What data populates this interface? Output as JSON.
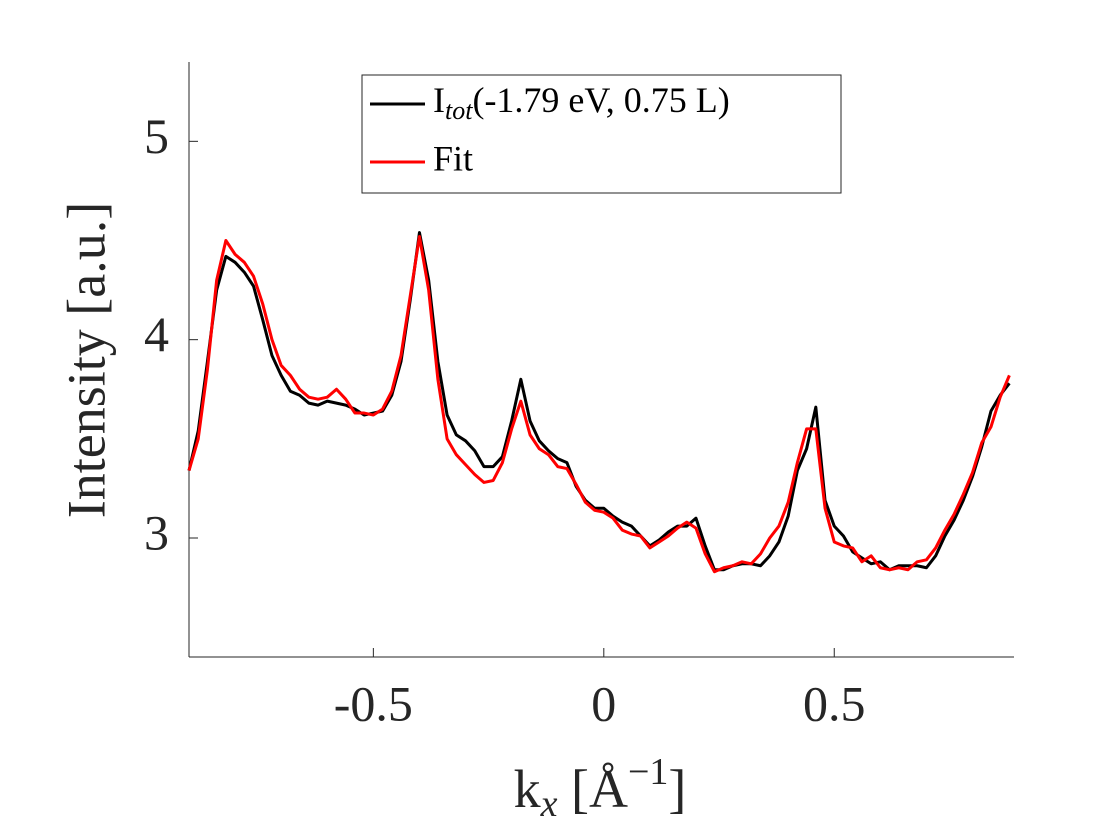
{
  "chart_data": {
    "type": "line",
    "xlabel": [
      "k",
      "x",
      " [Å",
      "−1",
      "]"
    ],
    "ylabel": "Intensity [a.u.]",
    "x": [
      -0.9,
      -0.88,
      -0.86,
      -0.84,
      -0.82,
      -0.8,
      -0.78,
      -0.76,
      -0.74,
      -0.72,
      -0.7,
      -0.68,
      -0.66,
      -0.64,
      -0.62,
      -0.6,
      -0.58,
      -0.56,
      -0.54,
      -0.52,
      -0.5,
      -0.48,
      -0.46,
      -0.44,
      -0.42,
      -0.4,
      -0.38,
      -0.36,
      -0.34,
      -0.32,
      -0.3,
      -0.28,
      -0.26,
      -0.24,
      -0.22,
      -0.2,
      -0.18,
      -0.16,
      -0.14,
      -0.12,
      -0.1,
      -0.08,
      -0.06,
      -0.04,
      -0.02,
      0,
      0.02,
      0.04,
      0.06,
      0.08,
      0.1,
      0.12,
      0.14,
      0.16,
      0.18,
      0.2,
      0.22,
      0.24,
      0.26,
      0.28,
      0.3,
      0.32,
      0.34,
      0.36,
      0.38,
      0.4,
      0.42,
      0.44,
      0.46,
      0.48,
      0.5,
      0.52,
      0.54,
      0.56,
      0.58,
      0.6,
      0.62,
      0.64,
      0.66,
      0.68,
      0.7,
      0.72,
      0.74,
      0.76,
      0.78,
      0.8,
      0.82,
      0.84,
      0.86,
      0.88
    ],
    "series": [
      {
        "name": [
          "I",
          "tot",
          "(-1.79 eV, 0.75 L)"
        ],
        "color": "#000000",
        "values": [
          3.34,
          3.54,
          3.89,
          4.25,
          4.42,
          4.39,
          4.34,
          4.27,
          4.1,
          3.92,
          3.82,
          3.74,
          3.72,
          3.68,
          3.67,
          3.69,
          3.68,
          3.67,
          3.65,
          3.62,
          3.63,
          3.64,
          3.72,
          3.89,
          4.2,
          4.54,
          4.3,
          3.89,
          3.62,
          3.52,
          3.49,
          3.44,
          3.36,
          3.36,
          3.41,
          3.59,
          3.8,
          3.59,
          3.49,
          3.44,
          3.4,
          3.38,
          3.26,
          3.19,
          3.15,
          3.15,
          3.11,
          3.08,
          3.06,
          3.01,
          2.96,
          2.99,
          3.03,
          3.06,
          3.06,
          3.1,
          2.96,
          2.84,
          2.84,
          2.86,
          2.87,
          2.87,
          2.86,
          2.91,
          2.98,
          3.11,
          3.34,
          3.45,
          3.66,
          3.19,
          3.06,
          3.01,
          2.93,
          2.9,
          2.87,
          2.88,
          2.84,
          2.86,
          2.86,
          2.86,
          2.85,
          2.91,
          3.01,
          3.09,
          3.19,
          3.31,
          3.46,
          3.64,
          3.72,
          3.78
        ]
      },
      {
        "name": "Fit",
        "color": "#ff0000",
        "values": [
          3.34,
          3.5,
          3.85,
          4.3,
          4.5,
          4.43,
          4.39,
          4.32,
          4.18,
          4.0,
          3.87,
          3.82,
          3.75,
          3.71,
          3.7,
          3.71,
          3.75,
          3.7,
          3.63,
          3.63,
          3.62,
          3.65,
          3.74,
          3.92,
          4.22,
          4.52,
          4.25,
          3.8,
          3.5,
          3.42,
          3.37,
          3.32,
          3.28,
          3.29,
          3.38,
          3.55,
          3.69,
          3.52,
          3.45,
          3.42,
          3.36,
          3.35,
          3.27,
          3.18,
          3.14,
          3.13,
          3.1,
          3.04,
          3.02,
          3.01,
          2.95,
          2.98,
          3.01,
          3.05,
          3.08,
          3.05,
          2.92,
          2.83,
          2.85,
          2.86,
          2.88,
          2.87,
          2.92,
          3.0,
          3.06,
          3.18,
          3.38,
          3.55,
          3.55,
          3.15,
          2.98,
          2.96,
          2.95,
          2.88,
          2.91,
          2.85,
          2.84,
          2.85,
          2.84,
          2.88,
          2.89,
          2.95,
          3.04,
          3.12,
          3.22,
          3.33,
          3.48,
          3.56,
          3.71,
          3.82
        ]
      }
    ],
    "xlim": [
      -0.9,
      0.89
    ],
    "xticks": [
      -0.5,
      0,
      0.5
    ],
    "ylim": [
      2.4,
      5.4
    ],
    "yticks": [
      3,
      4,
      5
    ],
    "grid": false,
    "legend": "north"
  }
}
